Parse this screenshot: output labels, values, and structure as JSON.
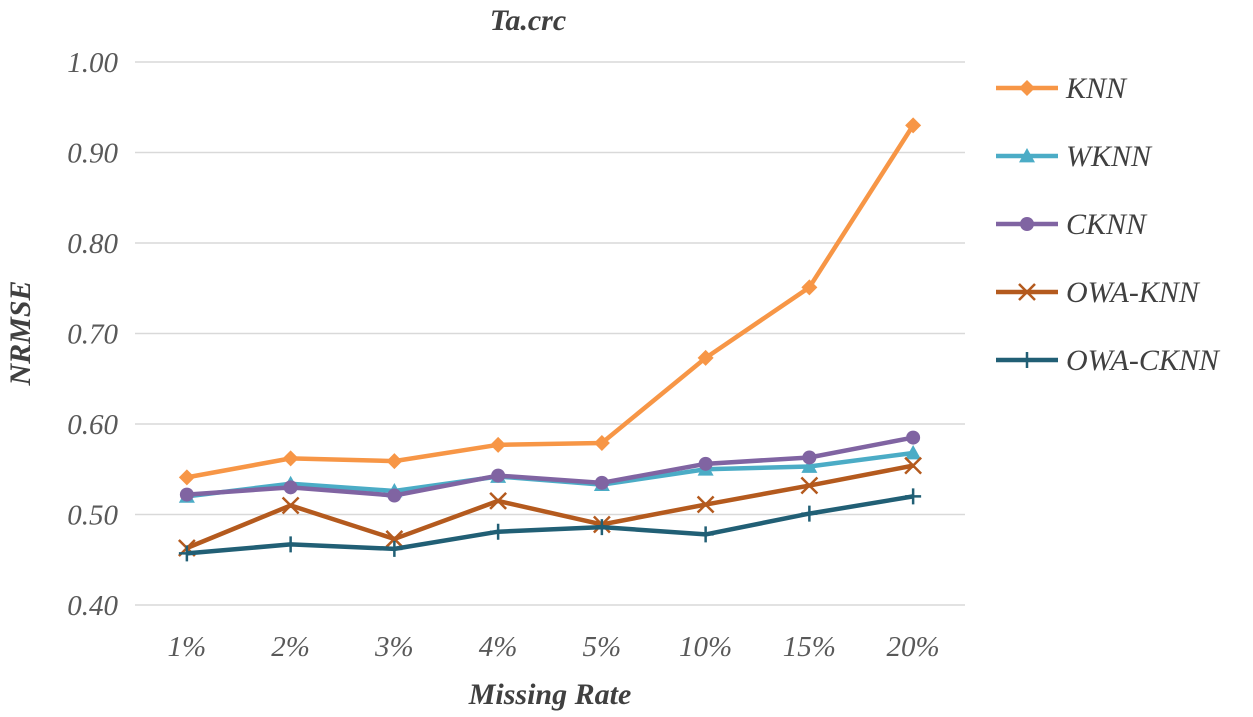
{
  "chart_data": {
    "type": "line",
    "title": "Ta.crc",
    "xlabel": "Missing Rate",
    "ylabel": "NRMSE",
    "categories": [
      "1%",
      "2%",
      "3%",
      "4%",
      "5%",
      "10%",
      "15%",
      "20%"
    ],
    "ylim": [
      0.4,
      1.0
    ],
    "yticks": [
      "0.40",
      "0.50",
      "0.60",
      "0.70",
      "0.80",
      "0.90",
      "1.00"
    ],
    "grid": "horizontal",
    "legend": "right",
    "series": [
      {
        "name": "KNN",
        "color": "#f79646",
        "marker": "diamond",
        "values": [
          0.541,
          0.562,
          0.559,
          0.577,
          0.579,
          0.673,
          0.751,
          0.93
        ]
      },
      {
        "name": "WKNN",
        "color": "#4bacc6",
        "marker": "triangle",
        "values": [
          0.52,
          0.534,
          0.526,
          0.542,
          0.533,
          0.55,
          0.553,
          0.568
        ]
      },
      {
        "name": "CKNN",
        "color": "#8064a2",
        "marker": "circle",
        "values": [
          0.522,
          0.53,
          0.521,
          0.543,
          0.535,
          0.556,
          0.563,
          0.585
        ]
      },
      {
        "name": "OWA-KNN",
        "color": "#b45a1e",
        "marker": "x",
        "values": [
          0.463,
          0.51,
          0.473,
          0.515,
          0.489,
          0.511,
          0.532,
          0.554
        ]
      },
      {
        "name": "OWA-CKNN",
        "color": "#215f75",
        "marker": "plus",
        "values": [
          0.457,
          0.467,
          0.462,
          0.481,
          0.486,
          0.478,
          0.501,
          0.52
        ]
      }
    ]
  }
}
